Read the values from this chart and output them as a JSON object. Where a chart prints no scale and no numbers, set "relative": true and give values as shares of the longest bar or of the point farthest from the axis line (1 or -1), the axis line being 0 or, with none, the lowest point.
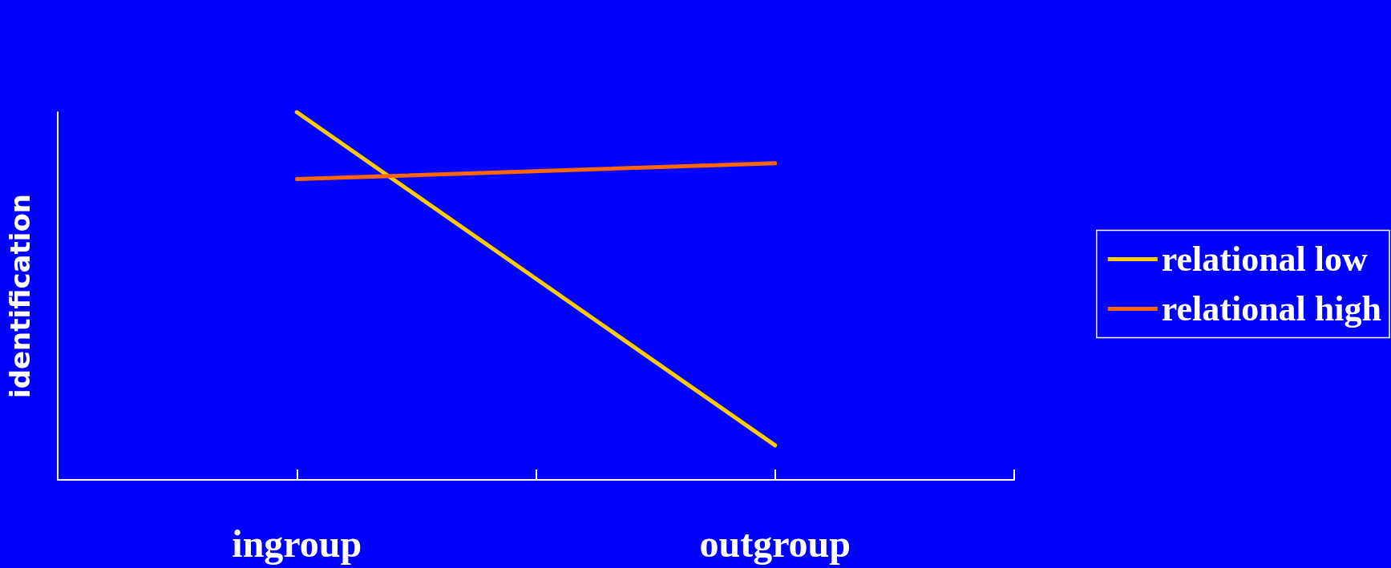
{
  "chart_data": {
    "type": "line",
    "ylabel": "identification",
    "categories": [
      null,
      "ingroup",
      null,
      "outgroup",
      null
    ],
    "relative": true,
    "legend": "right",
    "marker": "none",
    "line_style": "solid",
    "series": [
      {
        "name": "relational low",
        "color": "#ffcc00",
        "values": [
          null,
          1,
          null,
          0.094,
          null
        ]
      },
      {
        "name": "relational high",
        "color": "#ff6600",
        "values": [
          null,
          0.818,
          null,
          0.861,
          null
        ]
      }
    ]
  }
}
